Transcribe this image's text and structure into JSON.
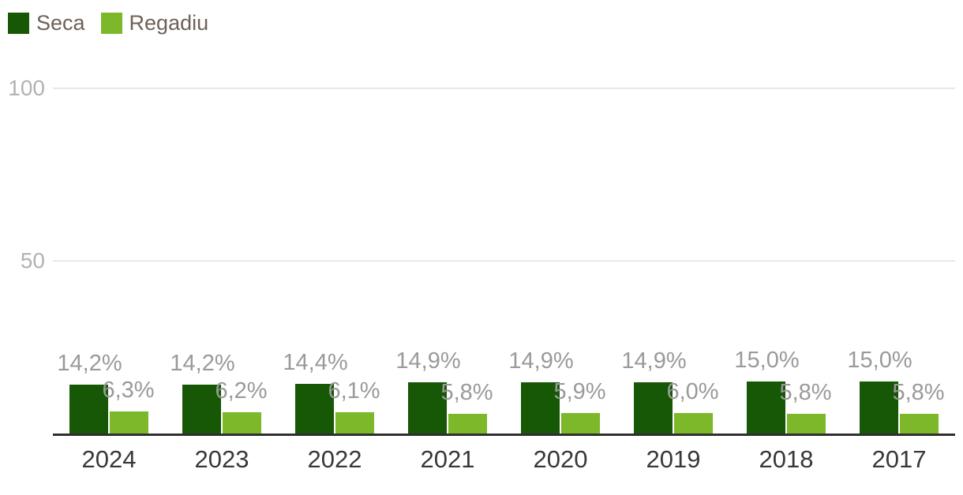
{
  "legend": {
    "position": "top-left",
    "items": [
      {
        "label": "Seca",
        "color": "#165806"
      },
      {
        "label": "Regadiu",
        "color": "#7cb82a"
      }
    ]
  },
  "chart_data": {
    "type": "bar",
    "title": "",
    "xlabel": "",
    "ylabel": "",
    "categories": [
      "2024",
      "2023",
      "2022",
      "2021",
      "2020",
      "2019",
      "2018",
      "2017"
    ],
    "series": [
      {
        "name": "Seca",
        "color": "#165806",
        "values": [
          14.2,
          14.2,
          14.4,
          14.9,
          14.9,
          14.9,
          15.0,
          15.0
        ],
        "labels": [
          "14,2%",
          "14,2%",
          "14,4%",
          "14,9%",
          "14,9%",
          "14,9%",
          "15,0%",
          "15,0%"
        ]
      },
      {
        "name": "Regadiu",
        "color": "#7cb82a",
        "values": [
          6.3,
          6.2,
          6.1,
          5.8,
          5.9,
          6.0,
          5.8,
          5.8
        ],
        "labels": [
          "6,3%",
          "6,2%",
          "6,1%",
          "5,8%",
          "5,9%",
          "6,0%",
          "5,8%",
          "5,8%"
        ]
      }
    ],
    "ylim": [
      0,
      100
    ],
    "yticks": [
      {
        "value": 100,
        "label": "100"
      },
      {
        "value": 50,
        "label": "50"
      }
    ],
    "grid": true,
    "legend_position": "top-left",
    "value_label_format": "comma-decimal-percent",
    "value_label_color": "#9a9a9a",
    "axis_line_color": "#2f2f2f",
    "gridline_color": "#e7e7e7"
  }
}
